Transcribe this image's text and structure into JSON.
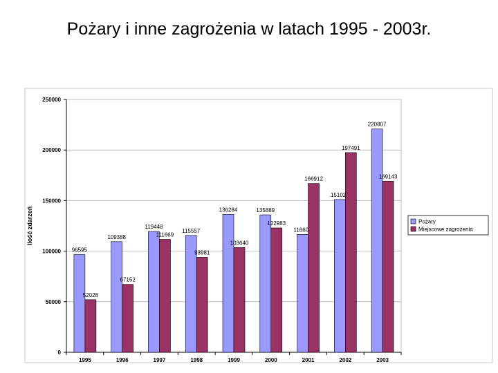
{
  "slide": {
    "title": "Pożary i inne zagrożenia w latach 1995 - 2003r."
  },
  "chart_data": {
    "type": "bar",
    "categories": [
      "1995",
      "1996",
      "1997",
      "1998",
      "1999",
      "2000",
      "2001",
      "2002",
      "2003"
    ],
    "series": [
      {
        "name": "Pożary",
        "color": "#9999ff",
        "values": [
          96595,
          109388,
          119448,
          115557,
          136284,
          135889,
          116602,
          151026,
          220807
        ]
      },
      {
        "name": "Miejscowe zagrożenia",
        "color": "#993366",
        "values": [
          52028,
          67152,
          111669,
          93981,
          103640,
          122983,
          166912,
          197491,
          169143
        ]
      }
    ],
    "ylabel": "Ilość zdarzeń",
    "xlabel": "",
    "ylim": [
      0,
      250000
    ],
    "yticks": [
      0,
      50000,
      100000,
      150000,
      200000,
      250000
    ],
    "grid": true,
    "legend": "right"
  }
}
